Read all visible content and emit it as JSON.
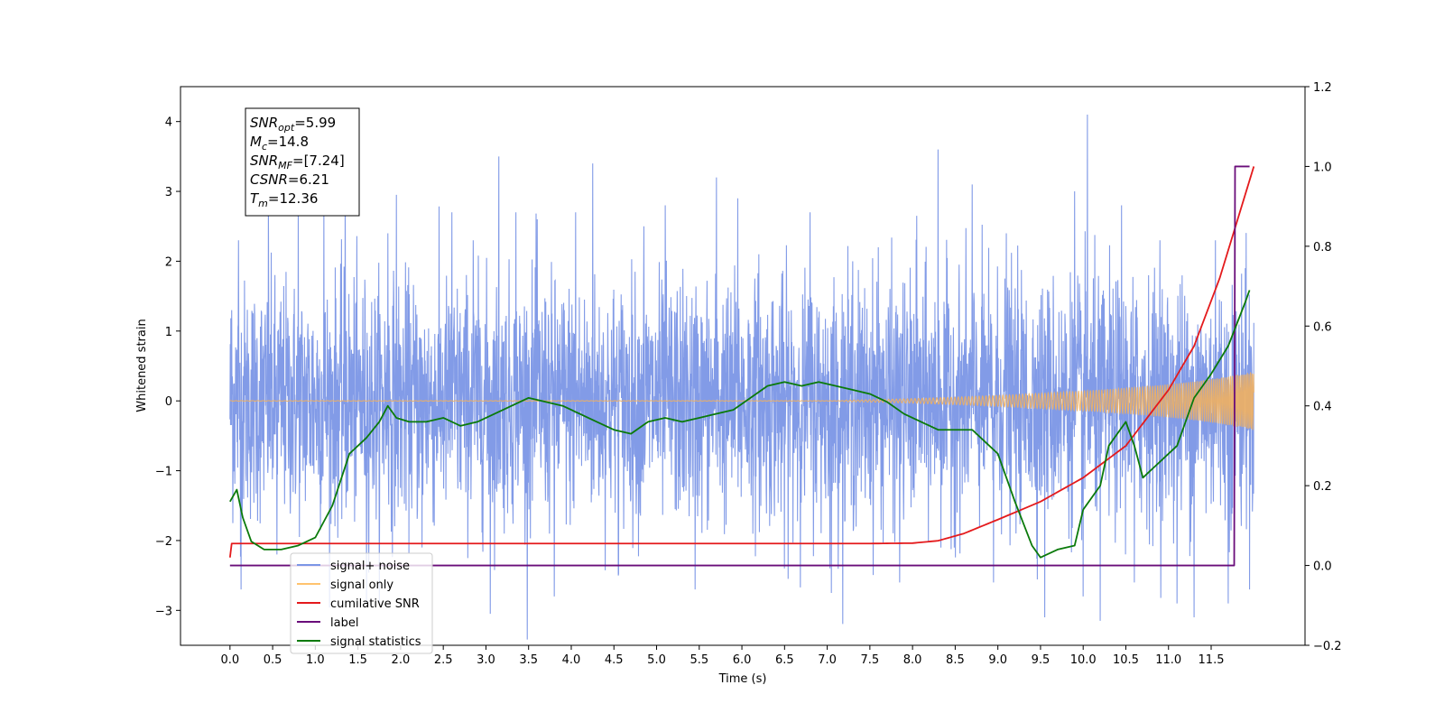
{
  "chart_data": {
    "type": "line",
    "xlabel": "Time (s)",
    "ylabel_left": "Whitened strain",
    "ylabel_right": "",
    "xlim": [
      -0.58,
      12.6
    ],
    "ylim_left": [
      -3.5,
      4.5
    ],
    "ylim_right": [
      -0.2,
      1.2
    ],
    "x_ticks": [
      "0.0",
      "0.5",
      "1.0",
      "1.5",
      "2.0",
      "2.5",
      "3.0",
      "3.5",
      "4.0",
      "4.5",
      "5.0",
      "5.5",
      "6.0",
      "6.5",
      "7.0",
      "7.5",
      "8.0",
      "8.5",
      "9.0",
      "9.5",
      "10.0",
      "10.5",
      "11.0",
      "11.5"
    ],
    "y_ticks_left": [
      -3,
      -2,
      -1,
      0,
      1,
      2,
      3,
      4
    ],
    "y_ticks_right": [
      "−0.2",
      "0.0",
      "0.2",
      "0.4",
      "0.6",
      "0.8",
      "1.0",
      "1.2"
    ],
    "y_ticks_left_labels": [
      "−3",
      "−2",
      "−1",
      "0",
      "1",
      "2",
      "3",
      "4"
    ],
    "grid": false,
    "legend_position": "lower-left",
    "legend": [
      {
        "label": "signal+ noise",
        "color": "#7b96e6"
      },
      {
        "label": "signal only",
        "color": "#ffc36e"
      },
      {
        "label": "cumilative SNR",
        "color": "#e41a1c"
      },
      {
        "label": "label",
        "color": "#6a0d7a"
      },
      {
        "label": "signal statistics",
        "color": "#0a7a0a"
      }
    ],
    "annotation": {
      "lines": [
        {
          "main": "SNR",
          "sub": "opt",
          "rest": "=5.99"
        },
        {
          "main": "M",
          "sub": "c",
          "rest": "=14.8"
        },
        {
          "main": "SNR",
          "sub": "MF",
          "rest": "=[7.24]"
        },
        {
          "main": "CSNR",
          "sub": "",
          "rest": "=6.21"
        },
        {
          "main": "T",
          "sub": "m",
          "rest": "=12.36"
        }
      ]
    },
    "series": [
      {
        "name": "signal+ noise",
        "axis": "left",
        "color": "#7b96e6",
        "x_range": [
          0.0,
          12.0
        ],
        "sigma": 1.0,
        "peaks": [
          [
            0.02,
            1.3
          ],
          [
            0.1,
            2.3
          ],
          [
            0.13,
            -2.7
          ],
          [
            0.45,
            2.9
          ],
          [
            0.55,
            -2.2
          ],
          [
            0.8,
            2.8
          ],
          [
            1.1,
            2.8
          ],
          [
            1.35,
            3.5
          ],
          [
            1.6,
            -2.9
          ],
          [
            1.85,
            2.4
          ],
          [
            1.95,
            2.95
          ],
          [
            2.25,
            -2.1
          ],
          [
            2.6,
            2.7
          ],
          [
            2.85,
            2.3
          ],
          [
            3.05,
            -3.05
          ],
          [
            3.15,
            3.5
          ],
          [
            3.35,
            2.7
          ],
          [
            3.6,
            2.6
          ],
          [
            3.8,
            -2.8
          ],
          [
            4.05,
            2.7
          ],
          [
            4.25,
            3.4
          ],
          [
            4.55,
            -2.5
          ],
          [
            4.85,
            2.5
          ],
          [
            5.1,
            2.8
          ],
          [
            5.45,
            -2.7
          ],
          [
            5.7,
            3.2
          ],
          [
            5.95,
            2.9
          ],
          [
            6.2,
            2.1
          ],
          [
            6.5,
            -2.4
          ],
          [
            6.8,
            2.7
          ],
          [
            7.05,
            -2.75
          ],
          [
            7.3,
            2.0
          ],
          [
            7.6,
            2.2
          ],
          [
            7.85,
            -2.6
          ],
          [
            8.05,
            2.65
          ],
          [
            8.3,
            3.6
          ],
          [
            8.7,
            3.1
          ],
          [
            8.95,
            -2.6
          ],
          [
            9.1,
            2.4
          ],
          [
            9.55,
            -3.1
          ],
          [
            9.9,
            3.0
          ],
          [
            10.0,
            -2.8
          ],
          [
            10.05,
            4.1
          ],
          [
            10.2,
            -3.15
          ],
          [
            10.45,
            2.8
          ],
          [
            10.6,
            -2.6
          ],
          [
            10.9,
            2.3
          ],
          [
            11.1,
            -2.9
          ],
          [
            11.3,
            -3.1
          ],
          [
            11.55,
            2.3
          ],
          [
            11.7,
            -2.9
          ],
          [
            11.9,
            1.9
          ],
          [
            11.95,
            -2.7
          ]
        ]
      },
      {
        "name": "signal only",
        "axis": "left",
        "color": "#f0b060",
        "x_range": [
          0.0,
          12.0
        ],
        "chirp": {
          "t_merge": 12.36,
          "max_amp": 0.42,
          "visible_from": 7.2
        }
      },
      {
        "name": "cumilative SNR",
        "axis": "right",
        "color": "#e41a1c",
        "x": [
          0.0,
          0.02,
          0.05,
          1.0,
          3.0,
          5.0,
          7.0,
          7.5,
          8.0,
          8.3,
          8.6,
          9.0,
          9.5,
          10.0,
          10.5,
          11.0,
          11.3,
          11.6,
          11.8,
          12.0
        ],
        "y": [
          0.02,
          0.055,
          0.055,
          0.055,
          0.055,
          0.055,
          0.055,
          0.055,
          0.056,
          0.062,
          0.08,
          0.115,
          0.16,
          0.22,
          0.3,
          0.44,
          0.55,
          0.72,
          0.86,
          1.0
        ]
      },
      {
        "name": "label",
        "axis": "right",
        "color": "#6a0d7a",
        "x": [
          0.0,
          11.77,
          11.78,
          11.92,
          11.95
        ],
        "y": [
          0.0,
          0.0,
          1.0,
          1.0,
          1.0
        ]
      },
      {
        "name": "signal statistics",
        "axis": "right",
        "color": "#0a7a0a",
        "x": [
          0.0,
          0.08,
          0.15,
          0.25,
          0.4,
          0.6,
          0.8,
          1.0,
          1.2,
          1.4,
          1.6,
          1.75,
          1.85,
          1.95,
          2.1,
          2.3,
          2.5,
          2.7,
          2.9,
          3.1,
          3.3,
          3.5,
          3.7,
          3.9,
          4.1,
          4.3,
          4.5,
          4.7,
          4.9,
          5.1,
          5.3,
          5.5,
          5.7,
          5.9,
          6.1,
          6.3,
          6.5,
          6.7,
          6.9,
          7.1,
          7.3,
          7.5,
          7.7,
          7.9,
          8.1,
          8.3,
          8.5,
          8.7,
          8.9,
          9.0,
          9.1,
          9.2,
          9.4,
          9.5,
          9.7,
          9.9,
          10.0,
          10.2,
          10.3,
          10.5,
          10.6,
          10.7,
          10.9,
          11.1,
          11.3,
          11.5,
          11.7,
          11.9,
          11.95
        ],
        "y": [
          0.16,
          0.19,
          0.12,
          0.06,
          0.04,
          0.04,
          0.05,
          0.07,
          0.15,
          0.28,
          0.32,
          0.36,
          0.4,
          0.37,
          0.36,
          0.36,
          0.37,
          0.35,
          0.36,
          0.38,
          0.4,
          0.42,
          0.41,
          0.4,
          0.38,
          0.36,
          0.34,
          0.33,
          0.36,
          0.37,
          0.36,
          0.37,
          0.38,
          0.39,
          0.42,
          0.45,
          0.46,
          0.45,
          0.46,
          0.45,
          0.44,
          0.43,
          0.41,
          0.38,
          0.36,
          0.34,
          0.34,
          0.34,
          0.3,
          0.28,
          0.22,
          0.16,
          0.05,
          0.02,
          0.04,
          0.05,
          0.14,
          0.2,
          0.3,
          0.36,
          0.3,
          0.22,
          0.26,
          0.3,
          0.42,
          0.48,
          0.55,
          0.66,
          0.69
        ]
      }
    ]
  }
}
